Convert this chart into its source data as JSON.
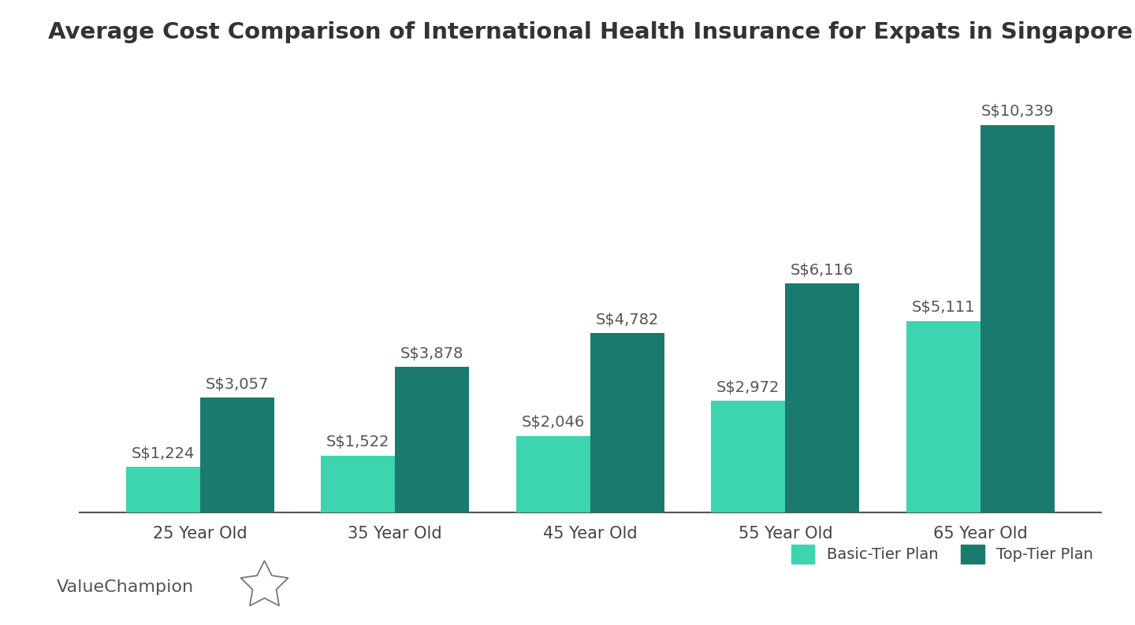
{
  "title": "Average Cost Comparison of International Health Insurance for Expats in Singapore",
  "categories": [
    "25 Year Old",
    "35 Year Old",
    "45 Year Old",
    "55 Year Old",
    "65 Year Old"
  ],
  "basic_values": [
    1224,
    1522,
    2046,
    2972,
    5111
  ],
  "top_values": [
    3057,
    3878,
    4782,
    6116,
    10339
  ],
  "basic_labels": [
    "S$1,224",
    "S$1,522",
    "S$2,046",
    "S$2,972",
    "S$5,111"
  ],
  "top_labels": [
    "S$3,057",
    "S$3,878",
    "S$4,782",
    "S$6,116",
    "S$10,339"
  ],
  "basic_color": "#3dd4b0",
  "top_color": "#1a7a6e",
  "background_color": "#ffffff",
  "title_fontsize": 21,
  "label_fontsize": 14,
  "tick_fontsize": 15,
  "legend_labels": [
    "Basic-Tier Plan",
    "Top-Tier Plan"
  ],
  "watermark_text": "ValueChampion",
  "bar_width": 0.38,
  "ylim": [
    0,
    12000
  ],
  "label_color": "#555555",
  "title_color": "#333333",
  "tick_color": "#444444",
  "spine_color": "#555555"
}
